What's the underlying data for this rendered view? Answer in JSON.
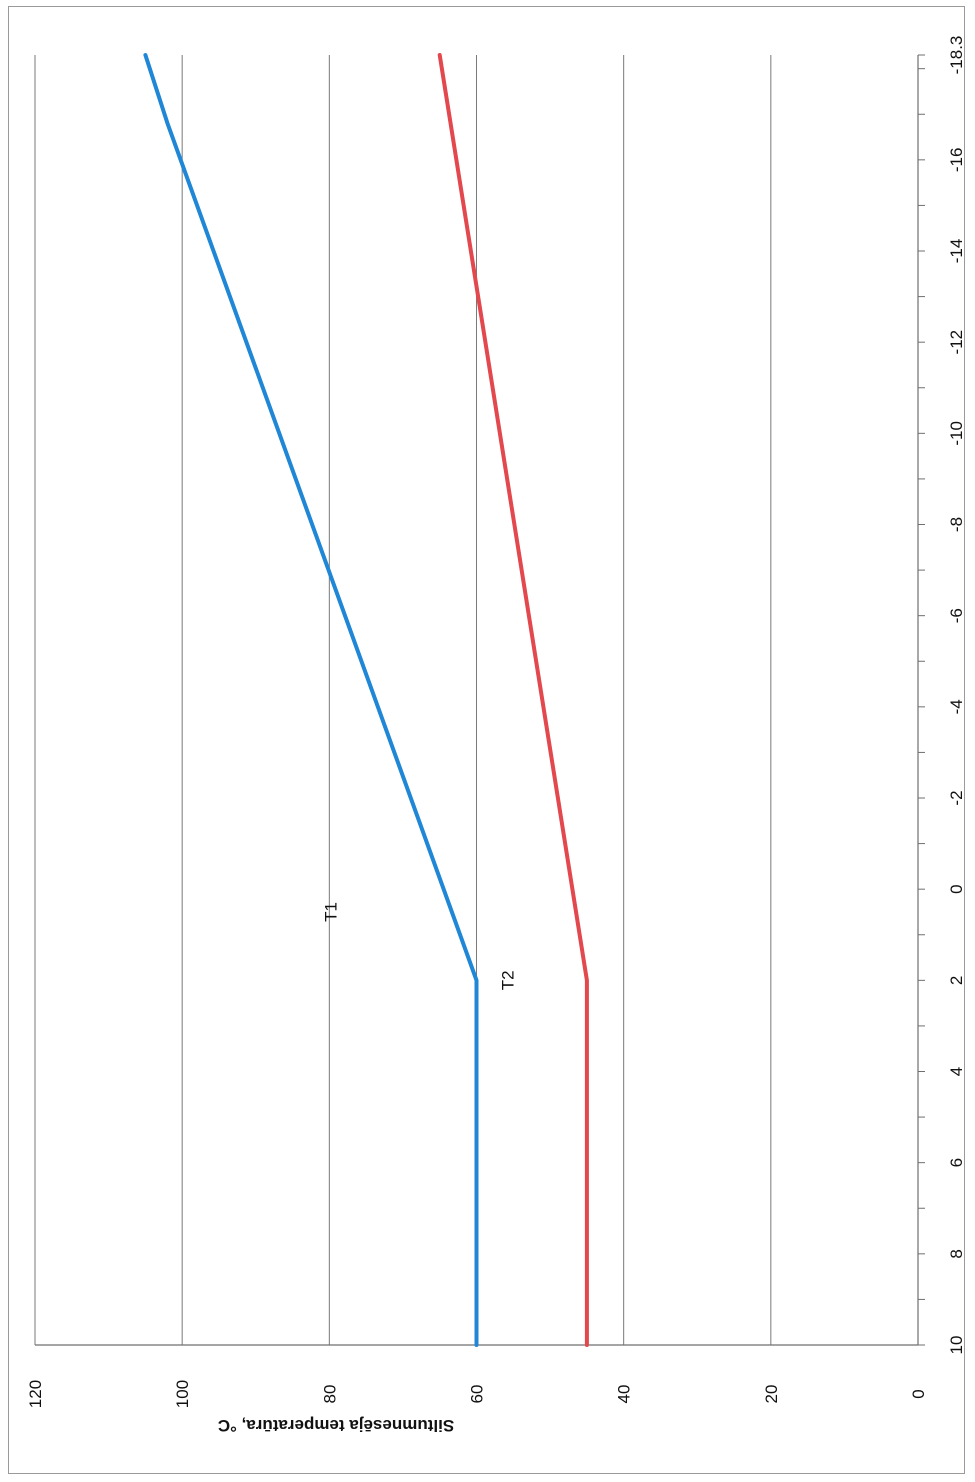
{
  "chart_data": {
    "type": "line",
    "orientation": "rotated-90-clockwise",
    "ylabel": "Siltumnesēja temperatūra, °C",
    "xlabel": "",
    "xlim": [
      10,
      -18.3
    ],
    "ylim": [
      0,
      120
    ],
    "x_tick_labels": [
      "10",
      "8",
      "6",
      "4",
      "2",
      "0",
      "-2",
      "-4",
      "-6",
      "-8",
      "-10",
      "-12",
      "-14",
      "-16",
      "-18.3"
    ],
    "y_tick_labels": [
      "0",
      "20",
      "40",
      "60",
      "80",
      "100",
      "120"
    ],
    "grid": true,
    "series": [
      {
        "name": "T1",
        "color": "#1f87d6",
        "x": [
          10,
          2,
          -16.8,
          -18.3
        ],
        "y": [
          60,
          60,
          102,
          105
        ]
      },
      {
        "name": "T2",
        "color": "#e2484d",
        "x": [
          10,
          2,
          -18.3
        ],
        "y": [
          45,
          45,
          65
        ]
      }
    ],
    "annotations": [
      {
        "text": "T1",
        "x": 0.5,
        "y": 79
      },
      {
        "text": "T2",
        "x": 2,
        "y": 55
      }
    ]
  }
}
